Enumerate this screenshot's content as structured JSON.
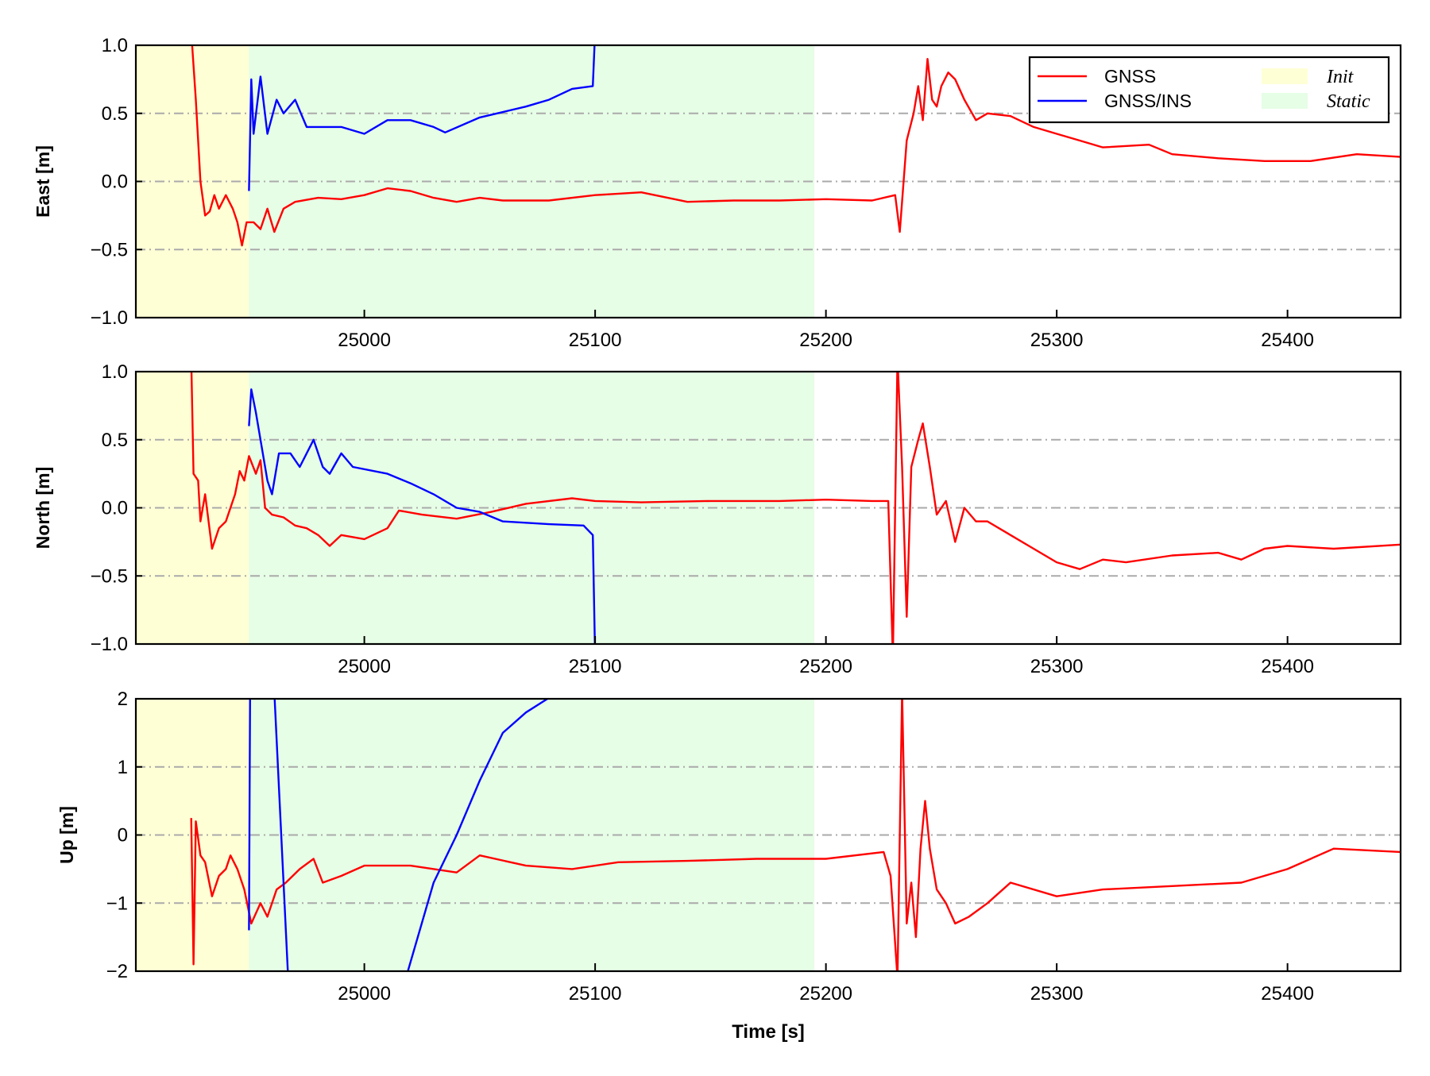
{
  "chart_data": [
    {
      "type": "line",
      "ylabel": "East [m]",
      "xlabel": "",
      "xlim": [
        24901,
        25449
      ],
      "ylim": [
        -1.0,
        1.0
      ],
      "yticks": [
        -1.0,
        -0.5,
        0.0,
        0.5,
        1.0
      ],
      "ytick_labels": [
        "−1.0",
        "−0.5",
        "0.0",
        "0.5",
        "1.0"
      ],
      "xticks": [
        25000,
        25100,
        25200,
        25300,
        25400
      ],
      "xtick_labels": [
        "25000",
        "25100",
        "25200",
        "25300",
        "25400"
      ],
      "grid": "horizontal dash-dot",
      "legend": {
        "placement": "top-right",
        "entries": [
          "GNSS",
          "GNSS/INS",
          "Init",
          "Static"
        ]
      },
      "series": [
        {
          "name": "GNSS",
          "color": "#ff0000",
          "points": [
            [
              24925,
              1.1
            ],
            [
              24927,
              0.6
            ],
            [
              24929,
              0.0
            ],
            [
              24931,
              -0.25
            ],
            [
              24933,
              -0.22
            ],
            [
              24935,
              -0.1
            ],
            [
              24937,
              -0.2
            ],
            [
              24940,
              -0.1
            ],
            [
              24943,
              -0.2
            ],
            [
              24945,
              -0.3
            ],
            [
              24947,
              -0.47
            ],
            [
              24949,
              -0.3
            ],
            [
              24952,
              -0.3
            ],
            [
              24955,
              -0.35
            ],
            [
              24958,
              -0.2
            ],
            [
              24961,
              -0.37
            ],
            [
              24965,
              -0.2
            ],
            [
              24970,
              -0.15
            ],
            [
              24980,
              -0.12
            ],
            [
              24990,
              -0.13
            ],
            [
              25000,
              -0.1
            ],
            [
              25010,
              -0.05
            ],
            [
              25020,
              -0.07
            ],
            [
              25030,
              -0.12
            ],
            [
              25040,
              -0.15
            ],
            [
              25050,
              -0.12
            ],
            [
              25060,
              -0.14
            ],
            [
              25080,
              -0.14
            ],
            [
              25100,
              -0.1
            ],
            [
              25120,
              -0.08
            ],
            [
              25140,
              -0.15
            ],
            [
              25160,
              -0.14
            ],
            [
              25180,
              -0.14
            ],
            [
              25200,
              -0.13
            ],
            [
              25220,
              -0.14
            ],
            [
              25230,
              -0.1
            ],
            [
              25232,
              -0.37
            ],
            [
              25235,
              0.3
            ],
            [
              25238,
              0.5
            ],
            [
              25240,
              0.7
            ],
            [
              25242,
              0.45
            ],
            [
              25244,
              0.9
            ],
            [
              25246,
              0.6
            ],
            [
              25248,
              0.55
            ],
            [
              25250,
              0.7
            ],
            [
              25253,
              0.8
            ],
            [
              25256,
              0.75
            ],
            [
              25260,
              0.6
            ],
            [
              25265,
              0.45
            ],
            [
              25270,
              0.5
            ],
            [
              25280,
              0.48
            ],
            [
              25290,
              0.4
            ],
            [
              25300,
              0.35
            ],
            [
              25310,
              0.3
            ],
            [
              25320,
              0.25
            ],
            [
              25340,
              0.27
            ],
            [
              25350,
              0.2
            ],
            [
              25370,
              0.17
            ],
            [
              25390,
              0.15
            ],
            [
              25410,
              0.15
            ],
            [
              25430,
              0.2
            ],
            [
              25449,
              0.18
            ]
          ]
        },
        {
          "name": "GNSS/INS",
          "color": "#0000ff",
          "points": [
            [
              24950,
              -0.07
            ],
            [
              24951,
              0.75
            ],
            [
              24952,
              0.35
            ],
            [
              24955,
              0.77
            ],
            [
              24958,
              0.35
            ],
            [
              24962,
              0.6
            ],
            [
              24965,
              0.5
            ],
            [
              24970,
              0.6
            ],
            [
              24975,
              0.4
            ],
            [
              24990,
              0.4
            ],
            [
              25000,
              0.35
            ],
            [
              25010,
              0.45
            ],
            [
              25020,
              0.45
            ],
            [
              25030,
              0.4
            ],
            [
              25035,
              0.36
            ],
            [
              25050,
              0.47
            ],
            [
              25070,
              0.55
            ],
            [
              25080,
              0.6
            ],
            [
              25090,
              0.68
            ],
            [
              25099,
              0.7
            ],
            [
              25100,
              1.1
            ]
          ]
        }
      ],
      "regions": [
        {
          "name": "Init",
          "from": 24901,
          "to": 24950,
          "color": "#ffffd6"
        },
        {
          "name": "Static",
          "from": 24950,
          "to": 25195,
          "color": "#e6fde6"
        }
      ]
    },
    {
      "type": "line",
      "ylabel": "North [m]",
      "xlabel": "",
      "xlim": [
        24901,
        25449
      ],
      "ylim": [
        -1.0,
        1.0
      ],
      "yticks": [
        -1.0,
        -0.5,
        0.0,
        0.5,
        1.0
      ],
      "ytick_labels": [
        "−1.0",
        "−0.5",
        "0.0",
        "0.5",
        "1.0"
      ],
      "xticks": [
        25000,
        25100,
        25200,
        25300,
        25400
      ],
      "xtick_labels": [
        "25000",
        "25100",
        "25200",
        "25300",
        "25400"
      ],
      "grid": "horizontal dash-dot",
      "series": [
        {
          "name": "GNSS",
          "color": "#ff0000",
          "points": [
            [
              24925,
              1.1
            ],
            [
              24926,
              0.25
            ],
            [
              24928,
              0.2
            ],
            [
              24929,
              -0.1
            ],
            [
              24931,
              0.1
            ],
            [
              24934,
              -0.3
            ],
            [
              24937,
              -0.15
            ],
            [
              24940,
              -0.1
            ],
            [
              24944,
              0.1
            ],
            [
              24946,
              0.27
            ],
            [
              24948,
              0.2
            ],
            [
              24950,
              0.38
            ],
            [
              24953,
              0.25
            ],
            [
              24955,
              0.35
            ],
            [
              24957,
              0.0
            ],
            [
              24960,
              -0.05
            ],
            [
              24965,
              -0.07
            ],
            [
              24970,
              -0.13
            ],
            [
              24975,
              -0.15
            ],
            [
              24980,
              -0.2
            ],
            [
              24985,
              -0.28
            ],
            [
              24990,
              -0.2
            ],
            [
              25000,
              -0.23
            ],
            [
              25010,
              -0.15
            ],
            [
              25015,
              -0.02
            ],
            [
              25025,
              -0.05
            ],
            [
              25040,
              -0.08
            ],
            [
              25055,
              -0.03
            ],
            [
              25070,
              0.03
            ],
            [
              25090,
              0.07
            ],
            [
              25100,
              0.05
            ],
            [
              25120,
              0.04
            ],
            [
              25150,
              0.05
            ],
            [
              25180,
              0.05
            ],
            [
              25200,
              0.06
            ],
            [
              25220,
              0.05
            ],
            [
              25227,
              0.05
            ],
            [
              25229,
              -1.1
            ],
            [
              25231,
              1.1
            ],
            [
              25233,
              0.3
            ],
            [
              25235,
              -0.8
            ],
            [
              25237,
              0.3
            ],
            [
              25240,
              0.5
            ],
            [
              25242,
              0.62
            ],
            [
              25245,
              0.3
            ],
            [
              25248,
              -0.05
            ],
            [
              25252,
              0.05
            ],
            [
              25256,
              -0.25
            ],
            [
              25260,
              0.0
            ],
            [
              25265,
              -0.1
            ],
            [
              25270,
              -0.1
            ],
            [
              25280,
              -0.2
            ],
            [
              25290,
              -0.3
            ],
            [
              25300,
              -0.4
            ],
            [
              25310,
              -0.45
            ],
            [
              25320,
              -0.38
            ],
            [
              25330,
              -0.4
            ],
            [
              25350,
              -0.35
            ],
            [
              25370,
              -0.33
            ],
            [
              25380,
              -0.38
            ],
            [
              25390,
              -0.3
            ],
            [
              25400,
              -0.28
            ],
            [
              25420,
              -0.3
            ],
            [
              25449,
              -0.27
            ]
          ]
        },
        {
          "name": "GNSS/INS",
          "color": "#0000ff",
          "points": [
            [
              24950,
              0.6
            ],
            [
              24951,
              0.87
            ],
            [
              24953,
              0.7
            ],
            [
              24955,
              0.5
            ],
            [
              24958,
              0.2
            ],
            [
              24960,
              0.1
            ],
            [
              24963,
              0.4
            ],
            [
              24968,
              0.4
            ],
            [
              24972,
              0.3
            ],
            [
              24978,
              0.5
            ],
            [
              24982,
              0.3
            ],
            [
              24985,
              0.25
            ],
            [
              24990,
              0.4
            ],
            [
              24995,
              0.3
            ],
            [
              25010,
              0.25
            ],
            [
              25020,
              0.18
            ],
            [
              25030,
              0.1
            ],
            [
              25040,
              0.0
            ],
            [
              25050,
              -0.03
            ],
            [
              25060,
              -0.1
            ],
            [
              25080,
              -0.12
            ],
            [
              25095,
              -0.13
            ],
            [
              25099,
              -0.2
            ],
            [
              25100,
              -1.1
            ]
          ]
        }
      ],
      "regions": [
        {
          "name": "Init",
          "from": 24901,
          "to": 24950,
          "color": "#ffffd6"
        },
        {
          "name": "Static",
          "from": 24950,
          "to": 25195,
          "color": "#e6fde6"
        }
      ]
    },
    {
      "type": "line",
      "ylabel": "Up [m]",
      "xlabel": "Time [s]",
      "xlim": [
        24901,
        25449
      ],
      "ylim": [
        -2,
        2
      ],
      "yticks": [
        -2,
        -1,
        0,
        1,
        2
      ],
      "ytick_labels": [
        "−2",
        "−1",
        "0",
        "1",
        "2"
      ],
      "xticks": [
        25000,
        25100,
        25200,
        25300,
        25400
      ],
      "xtick_labels": [
        "25000",
        "25100",
        "25200",
        "25300",
        "25400"
      ],
      "grid": "horizontal dash-dot",
      "series": [
        {
          "name": "GNSS",
          "color": "#ff0000",
          "points": [
            [
              24925,
              0.25
            ],
            [
              24926,
              -1.9
            ],
            [
              24927,
              0.2
            ],
            [
              24929,
              -0.3
            ],
            [
              24931,
              -0.4
            ],
            [
              24934,
              -0.9
            ],
            [
              24937,
              -0.6
            ],
            [
              24940,
              -0.5
            ],
            [
              24942,
              -0.3
            ],
            [
              24945,
              -0.5
            ],
            [
              24948,
              -0.8
            ],
            [
              24951,
              -1.3
            ],
            [
              24955,
              -1.0
            ],
            [
              24958,
              -1.2
            ],
            [
              24962,
              -0.8
            ],
            [
              24966,
              -0.7
            ],
            [
              24972,
              -0.5
            ],
            [
              24978,
              -0.35
            ],
            [
              24982,
              -0.7
            ],
            [
              24990,
              -0.6
            ],
            [
              25000,
              -0.45
            ],
            [
              25020,
              -0.45
            ],
            [
              25040,
              -0.55
            ],
            [
              25050,
              -0.3
            ],
            [
              25070,
              -0.45
            ],
            [
              25090,
              -0.5
            ],
            [
              25110,
              -0.4
            ],
            [
              25140,
              -0.38
            ],
            [
              25170,
              -0.35
            ],
            [
              25200,
              -0.35
            ],
            [
              25225,
              -0.25
            ],
            [
              25228,
              -0.6
            ],
            [
              25231,
              -2.1
            ],
            [
              25233,
              2.1
            ],
            [
              25235,
              -1.3
            ],
            [
              25237,
              -0.7
            ],
            [
              25239,
              -1.5
            ],
            [
              25241,
              -0.2
            ],
            [
              25243,
              0.5
            ],
            [
              25245,
              -0.2
            ],
            [
              25248,
              -0.8
            ],
            [
              25252,
              -1.0
            ],
            [
              25256,
              -1.3
            ],
            [
              25262,
              -1.2
            ],
            [
              25270,
              -1.0
            ],
            [
              25280,
              -0.7
            ],
            [
              25300,
              -0.9
            ],
            [
              25320,
              -0.8
            ],
            [
              25350,
              -0.75
            ],
            [
              25380,
              -0.7
            ],
            [
              25400,
              -0.5
            ],
            [
              25420,
              -0.2
            ],
            [
              25449,
              -0.25
            ]
          ]
        },
        {
          "name": "GNSS/INS",
          "color": "#0000ff",
          "points": [
            [
              24950,
              -1.4
            ],
            [
              24950.5,
              2.1
            ],
            [
              24961,
              2.1
            ],
            [
              24967,
              -2.1
            ],
            [
              25018,
              -2.1
            ],
            [
              25030,
              -0.7
            ],
            [
              25040,
              0.0
            ],
            [
              25050,
              0.8
            ],
            [
              25060,
              1.5
            ],
            [
              25070,
              1.8
            ],
            [
              25084,
              2.1
            ]
          ]
        }
      ],
      "regions": [
        {
          "name": "Init",
          "from": 24901,
          "to": 24950,
          "color": "#ffffd6"
        },
        {
          "name": "Static",
          "from": 24950,
          "to": 25195,
          "color": "#e6fde6"
        }
      ]
    }
  ]
}
